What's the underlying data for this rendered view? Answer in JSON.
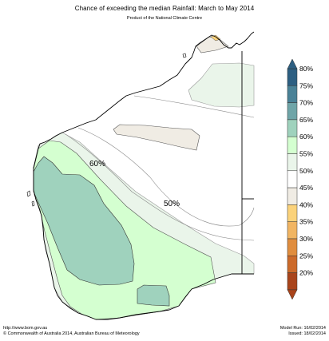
{
  "title": "Chance of exceeding the median Rainfall: March to May 2014",
  "subtitle": "Product of the National Climate Centre",
  "contour_labels": [
    "60%",
    "50%"
  ],
  "legend": {
    "items": [
      {
        "label": "80%",
        "color": "#2d5f82"
      },
      {
        "label": "75%",
        "color": "#4a8297"
      },
      {
        "label": "70%",
        "color": "#6fa5a8"
      },
      {
        "label": "65%",
        "color": "#9fd2bd"
      },
      {
        "label": "60%",
        "color": "#d4ffd0"
      },
      {
        "label": "55%",
        "color": "#eaf5ea"
      },
      {
        "label": "50%",
        "color": "#ffffff"
      },
      {
        "label": "45%",
        "color": "#f0ece4"
      },
      {
        "label": "40%",
        "color": "#fbd27a"
      },
      {
        "label": "35%",
        "color": "#f1b562"
      },
      {
        "label": "30%",
        "color": "#e08d3e"
      },
      {
        "label": "25%",
        "color": "#cc6a2a"
      },
      {
        "label": "20%",
        "color": "#a9441b"
      }
    ]
  },
  "footer": {
    "url": "http://www.bom.gov.au",
    "copyright": "©  Commonwealth of Australia 2014, Australian Bureau of Meteorology",
    "model_run": "Model Run: 16/02/2014",
    "issued": "Issued: 18/02/2014"
  }
}
